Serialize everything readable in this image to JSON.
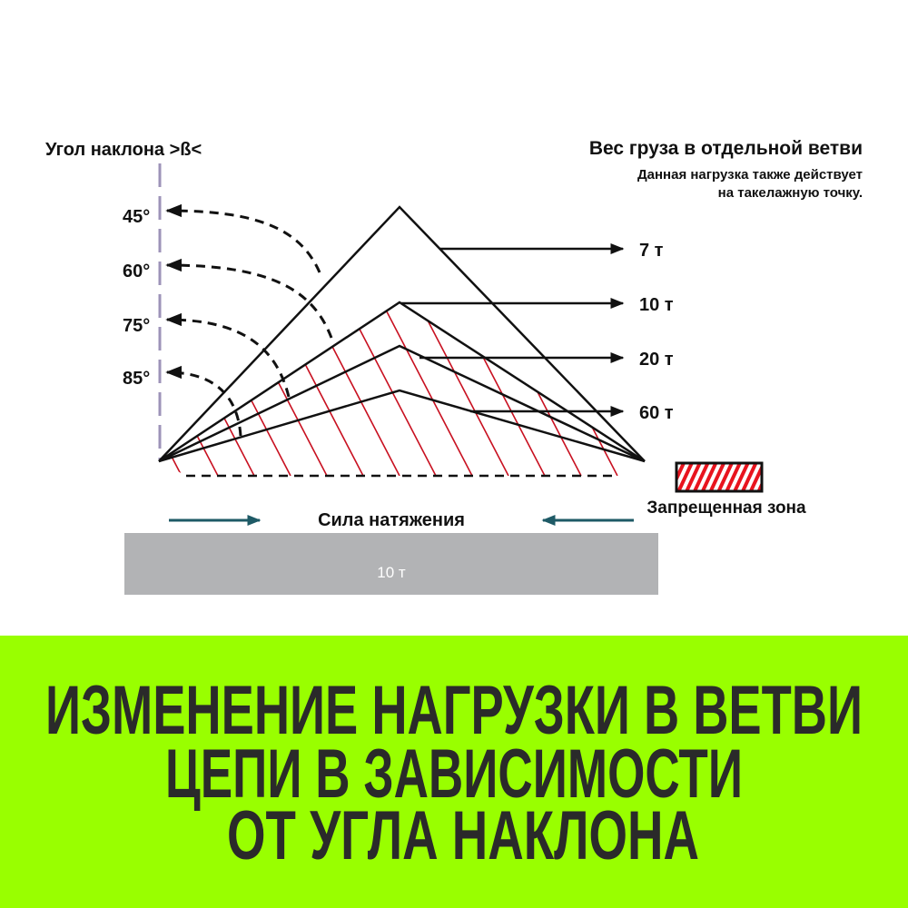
{
  "header": {
    "left_title": "Угол наклона >ß<",
    "right_title": "Вес груза в отдельной ветви",
    "right_note_line1": "Данная нагрузка также действует",
    "right_note_line2": "на такелажную точку."
  },
  "angles": [
    "45°",
    "60°",
    "75°",
    "85°"
  ],
  "loads": [
    "7 т",
    "10 т",
    "20 т",
    "60 т"
  ],
  "legend": {
    "forbidden_zone": "Запрещенная зона"
  },
  "tension_label": "Сила натяжения",
  "load_bar_label": "10 т",
  "banner": {
    "lines": [
      "ИЗМЕНЕНИЕ НАГРУЗКИ В ВЕТВИ",
      "ЦЕПИ В ЗАВИСИМОСТИ",
      "ОТ УГЛА НАКЛОНА"
    ]
  },
  "colors": {
    "banner_bg": "#99ff00",
    "banner_text": "#2a2a2a",
    "hatch": "#d01020",
    "tension_arrow": "#1e5a66",
    "load_bar": "#b2b3b5",
    "axis_line": "#9d93b8"
  }
}
